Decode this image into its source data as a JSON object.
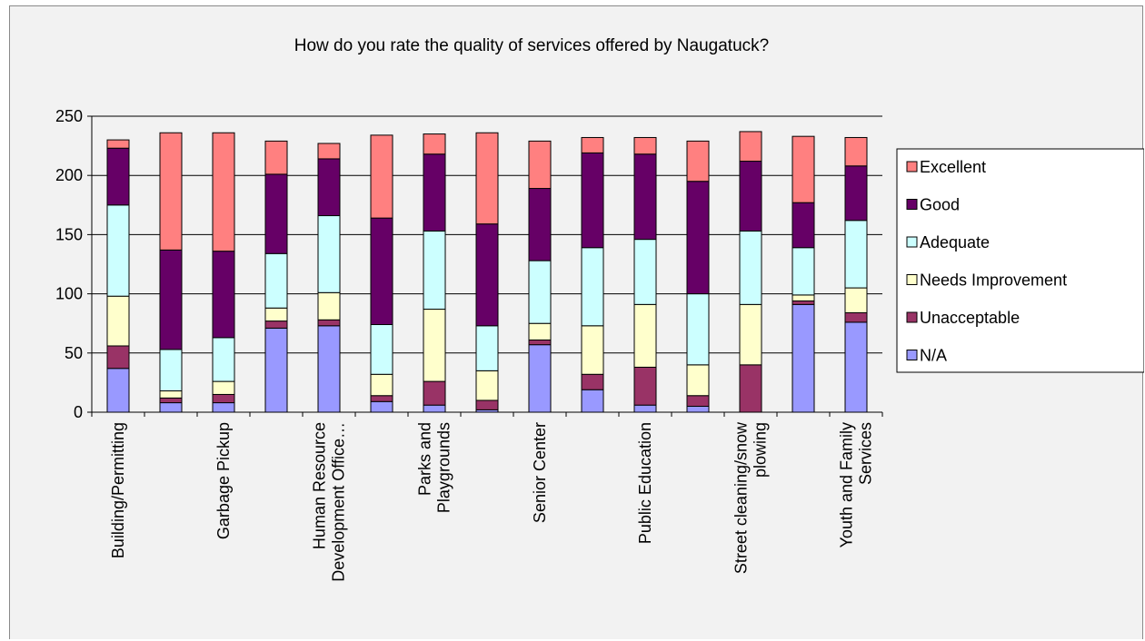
{
  "chart_data": {
    "type": "bar",
    "stacked": true,
    "title": "How do you rate the quality of services offered by Naugatuck?",
    "xlabel": "",
    "ylabel": "",
    "ylim": [
      0,
      250
    ],
    "yticks": [
      0,
      50,
      100,
      150,
      200,
      250
    ],
    "grid": true,
    "legend_position": "right",
    "categories": [
      "Building/Permitting",
      "",
      "Garbage Pickup",
      "",
      "Human Resource Development Office…",
      "",
      "Parks and Playgrounds",
      "",
      "Senior Center",
      "",
      "Public Education",
      "",
      "Street cleaning/snow plowing",
      "",
      "Youth and Family Services"
    ],
    "category_lines": [
      [
        "Building/Permitting"
      ],
      [],
      [
        "Garbage Pickup"
      ],
      [],
      [
        "Human Resource",
        "Development Office…"
      ],
      [],
      [
        "Parks and",
        "Playgrounds"
      ],
      [],
      [
        "Senior Center"
      ],
      [],
      [
        "Public Education"
      ],
      [],
      [
        "Street cleaning/snow",
        "plowing"
      ],
      [],
      [
        "Youth and Family",
        "Services"
      ]
    ],
    "series": [
      {
        "name": "N/A",
        "color": "#9999ff",
        "values": [
          37,
          8,
          8,
          71,
          73,
          9,
          6,
          2,
          57,
          19,
          6,
          5,
          0,
          91,
          76
        ]
      },
      {
        "name": "Unacceptable",
        "color": "#993366",
        "values": [
          19,
          4,
          7,
          6,
          5,
          5,
          20,
          8,
          4,
          13,
          32,
          9,
          40,
          3,
          8
        ]
      },
      {
        "name": "Needs Improvement",
        "color": "#ffffcc",
        "values": [
          42,
          6,
          11,
          11,
          23,
          18,
          61,
          25,
          14,
          41,
          53,
          26,
          51,
          5,
          21
        ]
      },
      {
        "name": "Adequate",
        "color": "#ccffff",
        "values": [
          77,
          35,
          37,
          46,
          65,
          42,
          66,
          38,
          53,
          66,
          55,
          60,
          62,
          40,
          57
        ]
      },
      {
        "name": "Good",
        "color": "#660066",
        "values": [
          48,
          84,
          73,
          67,
          48,
          90,
          65,
          86,
          61,
          80,
          72,
          95,
          59,
          38,
          46
        ]
      },
      {
        "name": "Excellent",
        "color": "#ff8080",
        "values": [
          7,
          99,
          100,
          28,
          13,
          70,
          17,
          77,
          40,
          13,
          14,
          34,
          25,
          56,
          24
        ]
      }
    ]
  }
}
